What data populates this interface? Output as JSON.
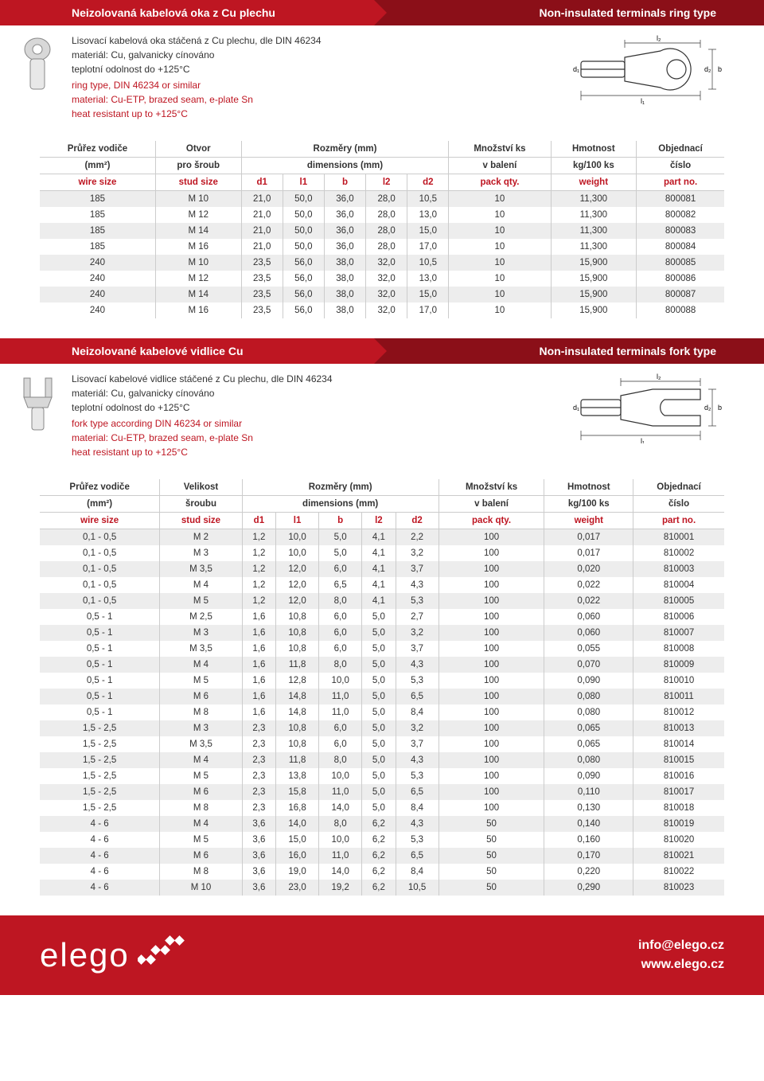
{
  "colors": {
    "red": "#be1622",
    "darkred": "#8b0f18",
    "altrow": "#ededed"
  },
  "section1": {
    "title_cz": "Neizolovaná kabelová oka z Cu plechu",
    "title_en": "Non-insulated terminals ring type",
    "desc_cz": "Lisovací kabelová oka stáčená z Cu plechu, dle DIN 46234\nmateriál: Cu, galvanicky cínováno\nteplotní odolnost do +125°C",
    "desc_en": "ring type, DIN 46234 or similar\nmaterial: Cu-ETP,  brazed seam, e-plate Sn\nheat resistant up to +125°C",
    "headers": {
      "r1": [
        "Průřez vodiče",
        "Otvor",
        "Rozměry (mm)",
        "Množství ks",
        "Hmotnost",
        "Objednací"
      ],
      "r2": [
        "(mm²)",
        "pro šroub",
        "dimensions (mm)",
        "v balení",
        "kg/100 ks",
        "číslo"
      ],
      "r3": [
        "wire size",
        "stud size",
        "d1",
        "l1",
        "b",
        "l2",
        "d2",
        "pack qty.",
        "weight",
        "part no."
      ]
    },
    "rows": [
      [
        "185",
        "M 10",
        "21,0",
        "50,0",
        "36,0",
        "28,0",
        "10,5",
        "10",
        "11,300",
        "800081"
      ],
      [
        "185",
        "M 12",
        "21,0",
        "50,0",
        "36,0",
        "28,0",
        "13,0",
        "10",
        "11,300",
        "800082"
      ],
      [
        "185",
        "M 14",
        "21,0",
        "50,0",
        "36,0",
        "28,0",
        "15,0",
        "10",
        "11,300",
        "800083"
      ],
      [
        "185",
        "M 16",
        "21,0",
        "50,0",
        "36,0",
        "28,0",
        "17,0",
        "10",
        "11,300",
        "800084"
      ],
      [
        "240",
        "M 10",
        "23,5",
        "56,0",
        "38,0",
        "32,0",
        "10,5",
        "10",
        "15,900",
        "800085"
      ],
      [
        "240",
        "M 12",
        "23,5",
        "56,0",
        "38,0",
        "32,0",
        "13,0",
        "10",
        "15,900",
        "800086"
      ],
      [
        "240",
        "M 14",
        "23,5",
        "56,0",
        "38,0",
        "32,0",
        "15,0",
        "10",
        "15,900",
        "800087"
      ],
      [
        "240",
        "M 16",
        "23,5",
        "56,0",
        "38,0",
        "32,0",
        "17,0",
        "10",
        "15,900",
        "800088"
      ]
    ]
  },
  "section2": {
    "title_cz": "Neizolované kabelové vidlice Cu",
    "title_en": "Non-insulated terminals fork type",
    "desc_cz": "Lisovací kabelové vidlice stáčené z Cu plechu, dle DIN 46234\nmateriál: Cu, galvanicky cínováno\nteplotní odolnost do +125°C",
    "desc_en": "fork type according DIN 46234 or similar\nmaterial: Cu-ETP,  brazed seam, e-plate Sn\nheat resistant up to +125°C",
    "headers": {
      "r1": [
        "Průřez vodiče",
        "Velikost",
        "Rozměry (mm)",
        "Množství ks",
        "Hmotnost",
        "Objednací"
      ],
      "r2": [
        "(mm²)",
        "šroubu",
        "dimensions (mm)",
        "v balení",
        "kg/100 ks",
        "číslo"
      ],
      "r3": [
        "wire size",
        "stud size",
        "d1",
        "l1",
        "b",
        "l2",
        "d2",
        "pack qty.",
        "weight",
        "part no."
      ]
    },
    "rows": [
      [
        "0,1 - 0,5",
        "M 2",
        "1,2",
        "10,0",
        "5,0",
        "4,1",
        "2,2",
        "100",
        "0,017",
        "810001"
      ],
      [
        "0,1 - 0,5",
        "M 3",
        "1,2",
        "10,0",
        "5,0",
        "4,1",
        "3,2",
        "100",
        "0,017",
        "810002"
      ],
      [
        "0,1 - 0,5",
        "M 3,5",
        "1,2",
        "12,0",
        "6,0",
        "4,1",
        "3,7",
        "100",
        "0,020",
        "810003"
      ],
      [
        "0,1 - 0,5",
        "M 4",
        "1,2",
        "12,0",
        "6,5",
        "4,1",
        "4,3",
        "100",
        "0,022",
        "810004"
      ],
      [
        "0,1 - 0,5",
        "M 5",
        "1,2",
        "12,0",
        "8,0",
        "4,1",
        "5,3",
        "100",
        "0,022",
        "810005"
      ],
      [
        "0,5 - 1",
        "M 2,5",
        "1,6",
        "10,8",
        "6,0",
        "5,0",
        "2,7",
        "100",
        "0,060",
        "810006"
      ],
      [
        "0,5 - 1",
        "M 3",
        "1,6",
        "10,8",
        "6,0",
        "5,0",
        "3,2",
        "100",
        "0,060",
        "810007"
      ],
      [
        "0,5 - 1",
        "M 3,5",
        "1,6",
        "10,8",
        "6,0",
        "5,0",
        "3,7",
        "100",
        "0,055",
        "810008"
      ],
      [
        "0,5 - 1",
        "M 4",
        "1,6",
        "11,8",
        "8,0",
        "5,0",
        "4,3",
        "100",
        "0,070",
        "810009"
      ],
      [
        "0,5 - 1",
        "M 5",
        "1,6",
        "12,8",
        "10,0",
        "5,0",
        "5,3",
        "100",
        "0,090",
        "810010"
      ],
      [
        "0,5 - 1",
        "M 6",
        "1,6",
        "14,8",
        "11,0",
        "5,0",
        "6,5",
        "100",
        "0,080",
        "810011"
      ],
      [
        "0,5 - 1",
        "M 8",
        "1,6",
        "14,8",
        "11,0",
        "5,0",
        "8,4",
        "100",
        "0,080",
        "810012"
      ],
      [
        "1,5 - 2,5",
        "M 3",
        "2,3",
        "10,8",
        "6,0",
        "5,0",
        "3,2",
        "100",
        "0,065",
        "810013"
      ],
      [
        "1,5 - 2,5",
        "M 3,5",
        "2,3",
        "10,8",
        "6,0",
        "5,0",
        "3,7",
        "100",
        "0,065",
        "810014"
      ],
      [
        "1,5 - 2,5",
        "M 4",
        "2,3",
        "11,8",
        "8,0",
        "5,0",
        "4,3",
        "100",
        "0,080",
        "810015"
      ],
      [
        "1,5 - 2,5",
        "M 5",
        "2,3",
        "13,8",
        "10,0",
        "5,0",
        "5,3",
        "100",
        "0,090",
        "810016"
      ],
      [
        "1,5 - 2,5",
        "M 6",
        "2,3",
        "15,8",
        "11,0",
        "5,0",
        "6,5",
        "100",
        "0,110",
        "810017"
      ],
      [
        "1,5 - 2,5",
        "M 8",
        "2,3",
        "16,8",
        "14,0",
        "5,0",
        "8,4",
        "100",
        "0,130",
        "810018"
      ],
      [
        "4 - 6",
        "M 4",
        "3,6",
        "14,0",
        "8,0",
        "6,2",
        "4,3",
        "50",
        "0,140",
        "810019"
      ],
      [
        "4 - 6",
        "M 5",
        "3,6",
        "15,0",
        "10,0",
        "6,2",
        "5,3",
        "50",
        "0,160",
        "810020"
      ],
      [
        "4 - 6",
        "M 6",
        "3,6",
        "16,0",
        "11,0",
        "6,2",
        "6,5",
        "50",
        "0,170",
        "810021"
      ],
      [
        "4 - 6",
        "M 8",
        "3,6",
        "19,0",
        "14,0",
        "6,2",
        "8,4",
        "50",
        "0,220",
        "810022"
      ],
      [
        "4 - 6",
        "M 10",
        "3,6",
        "23,0",
        "19,2",
        "6,2",
        "10,5",
        "50",
        "0,290",
        "810023"
      ]
    ]
  },
  "footer": {
    "logo": "elego",
    "email": "info@elego.cz",
    "web": "www.elego.cz"
  },
  "diagram_labels": {
    "l1": "l₁",
    "l2": "l₂",
    "d1": "d₁",
    "d2": "d₂",
    "b": "b"
  }
}
